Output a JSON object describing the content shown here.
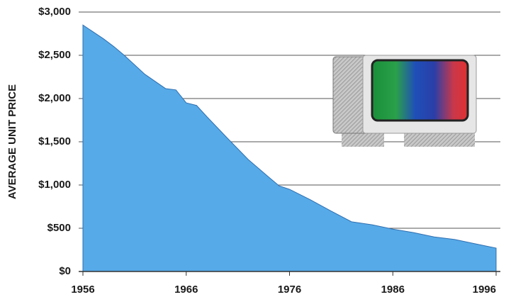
{
  "chart_data": {
    "type": "area",
    "y_label": "AVERAGE UNIT PRICE",
    "x": [
      1956,
      1958,
      1959,
      1960,
      1962,
      1964,
      1965,
      1966,
      1967,
      1968,
      1970,
      1972,
      1974,
      1975,
      1976,
      1978,
      1980,
      1982,
      1984,
      1986,
      1988,
      1990,
      1992,
      1994,
      1996
    ],
    "values": [
      2850,
      2690,
      2600,
      2500,
      2280,
      2115,
      2100,
      1950,
      1920,
      1790,
      1540,
      1295,
      1090,
      990,
      950,
      830,
      700,
      575,
      540,
      490,
      450,
      400,
      370,
      320,
      270
    ],
    "color": "#56aae8",
    "xlim": [
      1956,
      1996
    ],
    "xticks": [
      1956,
      1966,
      1976,
      1986,
      1996
    ],
    "ylim": [
      0,
      3000
    ],
    "yticks": [
      {
        "value": 0,
        "label": "$0"
      },
      {
        "value": 500,
        "label": "$500"
      },
      {
        "value": 1000,
        "label": "$1,000"
      },
      {
        "value": 1500,
        "label": "$1,500"
      },
      {
        "value": 2000,
        "label": "$2,000"
      },
      {
        "value": 2500,
        "label": "$2,500"
      },
      {
        "value": 3000,
        "label": "$3,000"
      }
    ],
    "grid": true
  }
}
